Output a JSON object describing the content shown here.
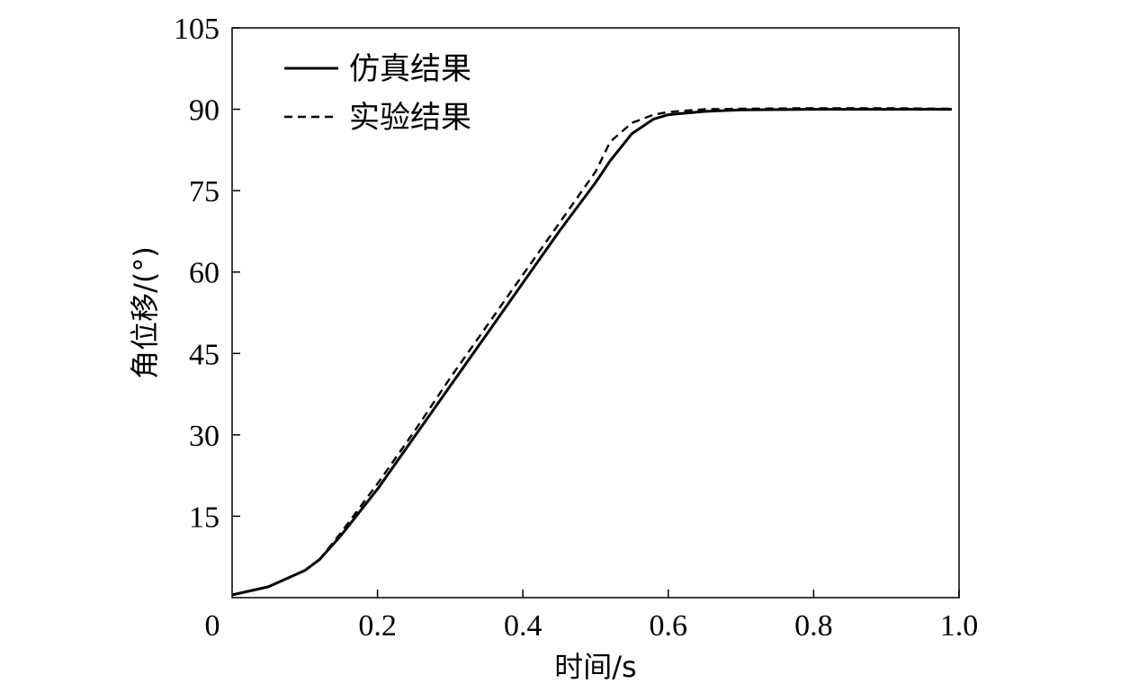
{
  "chart_data": {
    "type": "line",
    "xlabel": "时间/s",
    "ylabel": "角位移/(°)",
    "xlim": [
      0,
      1.0
    ],
    "ylim": [
      0,
      105
    ],
    "x_ticks": [
      0.2,
      0.4,
      0.6,
      0.8,
      1.0
    ],
    "x_tick_labels": [
      "0.2",
      "0.4",
      "0.6",
      "0.8",
      "1.0"
    ],
    "y_ticks": [
      15,
      30,
      45,
      60,
      75,
      90,
      105
    ],
    "y_tick_labels": [
      "15",
      "30",
      "45",
      "60",
      "75",
      "90",
      "105"
    ],
    "origin_label": "0",
    "grid": false,
    "legend_position": "top-left",
    "series": [
      {
        "name": "仿真结果",
        "style": "solid",
        "color": "#000000",
        "x": [
          0.0,
          0.05,
          0.1,
          0.12,
          0.15,
          0.2,
          0.25,
          0.3,
          0.35,
          0.4,
          0.45,
          0.5,
          0.52,
          0.55,
          0.58,
          0.6,
          0.65,
          0.7,
          0.8,
          0.9,
          0.99
        ],
        "y": [
          0.5,
          2.0,
          5.0,
          7.0,
          11.5,
          20.0,
          29.5,
          39.0,
          48.5,
          58.0,
          67.5,
          76.5,
          80.5,
          85.5,
          88.2,
          89.0,
          89.6,
          89.9,
          90.0,
          90.0,
          90.0
        ]
      },
      {
        "name": "实验结果",
        "style": "dashed",
        "color": "#000000",
        "x": [
          0.0,
          0.05,
          0.1,
          0.12,
          0.15,
          0.2,
          0.25,
          0.3,
          0.35,
          0.4,
          0.45,
          0.5,
          0.52,
          0.55,
          0.58,
          0.6,
          0.65,
          0.7,
          0.8,
          0.9,
          0.99
        ],
        "y": [
          0.5,
          2.0,
          5.0,
          7.0,
          12.0,
          21.0,
          30.5,
          40.5,
          50.0,
          59.5,
          69.0,
          78.5,
          84.0,
          87.5,
          89.0,
          89.5,
          90.0,
          90.1,
          90.2,
          90.2,
          90.1
        ]
      }
    ]
  }
}
